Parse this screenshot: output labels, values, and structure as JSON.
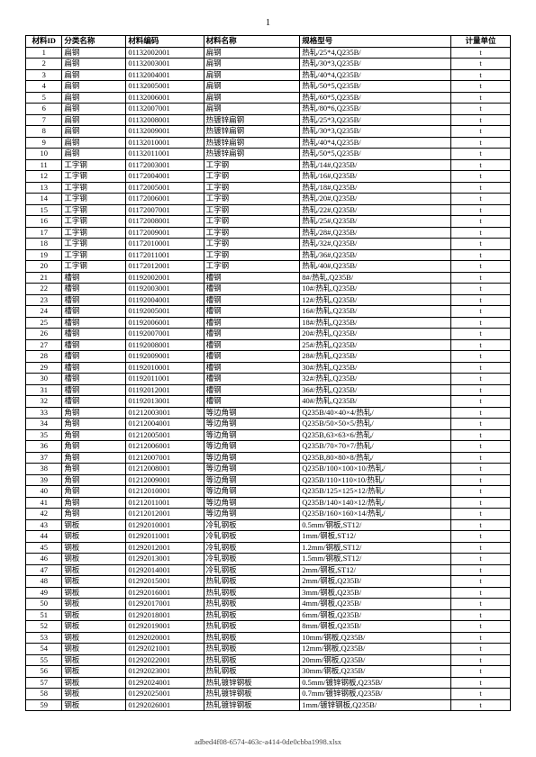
{
  "page_number": "1",
  "footer": "adbed4f08-6574-463c-a414-0de0cbba1998.xlsx",
  "headers": {
    "id": "材料ID",
    "cat": "分类名称",
    "code": "材料编码",
    "name": "材料名称",
    "spec": "规格型号",
    "unit": "计量单位"
  },
  "rows": [
    {
      "id": "1",
      "cat": "扁钢",
      "code": "01132002001",
      "name": "扁钢",
      "spec": "热轧/25*4,Q235B/",
      "unit": "t"
    },
    {
      "id": "2",
      "cat": "扁钢",
      "code": "01132003001",
      "name": "扁钢",
      "spec": "热轧/30*3,Q235B/",
      "unit": "t"
    },
    {
      "id": "3",
      "cat": "扁钢",
      "code": "01132004001",
      "name": "扁钢",
      "spec": "热轧/40*4,Q235B/",
      "unit": "t"
    },
    {
      "id": "4",
      "cat": "扁钢",
      "code": "01132005001",
      "name": "扁钢",
      "spec": "热轧/50*5,Q235B/",
      "unit": "t"
    },
    {
      "id": "5",
      "cat": "扁钢",
      "code": "01132006001",
      "name": "扁钢",
      "spec": "热轧/60*5,Q235B/",
      "unit": "t"
    },
    {
      "id": "6",
      "cat": "扁钢",
      "code": "01132007001",
      "name": "扁钢",
      "spec": "热轧/80*6,Q235B/",
      "unit": "t"
    },
    {
      "id": "7",
      "cat": "扁钢",
      "code": "01132008001",
      "name": "热镀锌扁钢",
      "spec": "热轧/25*3,Q235B/",
      "unit": "t"
    },
    {
      "id": "8",
      "cat": "扁钢",
      "code": "01132009001",
      "name": "热镀锌扁钢",
      "spec": "热轧/30*3,Q235B/",
      "unit": "t"
    },
    {
      "id": "9",
      "cat": "扁钢",
      "code": "01132010001",
      "name": "热镀锌扁钢",
      "spec": "热轧/40*4,Q235B/",
      "unit": "t"
    },
    {
      "id": "10",
      "cat": "扁钢",
      "code": "01132011001",
      "name": "热镀锌扁钢",
      "spec": "热轧/50*5,Q235B/",
      "unit": "t"
    },
    {
      "id": "11",
      "cat": "工字钢",
      "code": "01172003001",
      "name": "工字钢",
      "spec": "热轧/14#,Q235B/",
      "unit": "t"
    },
    {
      "id": "12",
      "cat": "工字钢",
      "code": "01172004001",
      "name": "工字钢",
      "spec": "热轧/16#,Q235B/",
      "unit": "t"
    },
    {
      "id": "13",
      "cat": "工字钢",
      "code": "01172005001",
      "name": "工字钢",
      "spec": "热轧/18#,Q235B/",
      "unit": "t"
    },
    {
      "id": "14",
      "cat": "工字钢",
      "code": "01172006001",
      "name": "工字钢",
      "spec": "热轧/20#,Q235B/",
      "unit": "t"
    },
    {
      "id": "15",
      "cat": "工字钢",
      "code": "01172007001",
      "name": "工字钢",
      "spec": "热轧/22#,Q235B/",
      "unit": "t"
    },
    {
      "id": "16",
      "cat": "工字钢",
      "code": "01172008001",
      "name": "工字钢",
      "spec": "热轧/25#,Q235B/",
      "unit": "t"
    },
    {
      "id": "17",
      "cat": "工字钢",
      "code": "01172009001",
      "name": "工字钢",
      "spec": "热轧/28#,Q235B/",
      "unit": "t"
    },
    {
      "id": "18",
      "cat": "工字钢",
      "code": "01172010001",
      "name": "工字钢",
      "spec": "热轧/32#,Q235B/",
      "unit": "t"
    },
    {
      "id": "19",
      "cat": "工字钢",
      "code": "01172011001",
      "name": "工字钢",
      "spec": "热轧/36#,Q235B/",
      "unit": "t"
    },
    {
      "id": "20",
      "cat": "工字钢",
      "code": "01172012001",
      "name": "工字钢",
      "spec": "热轧/40#,Q235B/",
      "unit": "t"
    },
    {
      "id": "21",
      "cat": "槽钢",
      "code": "01192002001",
      "name": "槽钢",
      "spec": "8#/热轧,Q235B/",
      "unit": "t"
    },
    {
      "id": "22",
      "cat": "槽钢",
      "code": "01192003001",
      "name": "槽钢",
      "spec": "10#/热轧,Q235B/",
      "unit": "t"
    },
    {
      "id": "23",
      "cat": "槽钢",
      "code": "01192004001",
      "name": "槽钢",
      "spec": "12#/热轧,Q235B/",
      "unit": "t"
    },
    {
      "id": "24",
      "cat": "槽钢",
      "code": "01192005001",
      "name": "槽钢",
      "spec": "16#/热轧,Q235B/",
      "unit": "t"
    },
    {
      "id": "25",
      "cat": "槽钢",
      "code": "01192006001",
      "name": "槽钢",
      "spec": "18#/热轧,Q235B/",
      "unit": "t"
    },
    {
      "id": "26",
      "cat": "槽钢",
      "code": "01192007001",
      "name": "槽钢",
      "spec": "20#/热轧,Q235B/",
      "unit": "t"
    },
    {
      "id": "27",
      "cat": "槽钢",
      "code": "01192008001",
      "name": "槽钢",
      "spec": "25#/热轧,Q235B/",
      "unit": "t"
    },
    {
      "id": "28",
      "cat": "槽钢",
      "code": "01192009001",
      "name": "槽钢",
      "spec": "28#/热轧,Q235B/",
      "unit": "t"
    },
    {
      "id": "29",
      "cat": "槽钢",
      "code": "01192010001",
      "name": "槽钢",
      "spec": "30#/热轧,Q235B/",
      "unit": "t"
    },
    {
      "id": "30",
      "cat": "槽钢",
      "code": "01192011001",
      "name": "槽钢",
      "spec": "32#/热轧,Q235B/",
      "unit": "t"
    },
    {
      "id": "31",
      "cat": "槽钢",
      "code": "01192012001",
      "name": "槽钢",
      "spec": "36#/热轧,Q235B/",
      "unit": "t"
    },
    {
      "id": "32",
      "cat": "槽钢",
      "code": "01192013001",
      "name": "槽钢",
      "spec": "40#/热轧,Q235B/",
      "unit": "t"
    },
    {
      "id": "33",
      "cat": "角钢",
      "code": "01212003001",
      "name": "等边角钢",
      "spec": "Q235B/40×40×4/热轧/",
      "unit": "t"
    },
    {
      "id": "34",
      "cat": "角钢",
      "code": "01212004001",
      "name": "等边角钢",
      "spec": "Q235B/50×50×5/热轧/",
      "unit": "t"
    },
    {
      "id": "35",
      "cat": "角钢",
      "code": "01212005001",
      "name": "等边角钢",
      "spec": "Q235B,63×63×6/热轧/",
      "unit": "t"
    },
    {
      "id": "36",
      "cat": "角钢",
      "code": "01212006001",
      "name": "等边角钢",
      "spec": "Q235B/70×70×7/热轧/",
      "unit": "t"
    },
    {
      "id": "37",
      "cat": "角钢",
      "code": "01212007001",
      "name": "等边角钢",
      "spec": "Q235B,80×80×8/热轧/",
      "unit": "t"
    },
    {
      "id": "38",
      "cat": "角钢",
      "code": "01212008001",
      "name": "等边角钢",
      "spec": "Q235B/100×100×10/热轧/",
      "unit": "t"
    },
    {
      "id": "39",
      "cat": "角钢",
      "code": "01212009001",
      "name": "等边角钢",
      "spec": "Q235B/110×110×10/热轧/",
      "unit": "t"
    },
    {
      "id": "40",
      "cat": "角钢",
      "code": "01212010001",
      "name": "等边角钢",
      "spec": "Q235B/125×125×12/热轧/",
      "unit": "t"
    },
    {
      "id": "41",
      "cat": "角钢",
      "code": "01212011001",
      "name": "等边角钢",
      "spec": "Q235B/140×140×12/热轧/",
      "unit": "t"
    },
    {
      "id": "42",
      "cat": "角钢",
      "code": "01212012001",
      "name": "等边角钢",
      "spec": "Q235B/160×160×14/热轧/",
      "unit": "t"
    },
    {
      "id": "43",
      "cat": "钢板",
      "code": "01292010001",
      "name": "冷轧钢板",
      "spec": "0.5mm/钢板,ST12/",
      "unit": "t"
    },
    {
      "id": "44",
      "cat": "钢板",
      "code": "01292011001",
      "name": "冷轧钢板",
      "spec": "1mm/钢板,ST12/",
      "unit": "t"
    },
    {
      "id": "45",
      "cat": "钢板",
      "code": "01292012001",
      "name": "冷轧钢板",
      "spec": "1.2mm/钢板,ST12/",
      "unit": "t"
    },
    {
      "id": "46",
      "cat": "钢板",
      "code": "01292013001",
      "name": "冷轧钢板",
      "spec": "1.5mm/钢板,ST12/",
      "unit": "t"
    },
    {
      "id": "47",
      "cat": "钢板",
      "code": "01292014001",
      "name": "冷轧钢板",
      "spec": "2mm/钢板,ST12/",
      "unit": "t"
    },
    {
      "id": "48",
      "cat": "钢板",
      "code": "01292015001",
      "name": "热轧钢板",
      "spec": "2mm/钢板,Q235B/",
      "unit": "t"
    },
    {
      "id": "49",
      "cat": "钢板",
      "code": "01292016001",
      "name": "热轧钢板",
      "spec": "3mm/钢板,Q235B/",
      "unit": "t"
    },
    {
      "id": "50",
      "cat": "钢板",
      "code": "01292017001",
      "name": "热轧钢板",
      "spec": "4mm/钢板,Q235B/",
      "unit": "t"
    },
    {
      "id": "51",
      "cat": "钢板",
      "code": "01292018001",
      "name": "热轧钢板",
      "spec": "6mm/钢板,Q235B/",
      "unit": "t"
    },
    {
      "id": "52",
      "cat": "钢板",
      "code": "01292019001",
      "name": "热轧钢板",
      "spec": "8mm/钢板,Q235B/",
      "unit": "t"
    },
    {
      "id": "53",
      "cat": "钢板",
      "code": "01292020001",
      "name": "热轧钢板",
      "spec": "10mm/钢板,Q235B/",
      "unit": "t"
    },
    {
      "id": "54",
      "cat": "钢板",
      "code": "01292021001",
      "name": "热轧钢板",
      "spec": "12mm/钢板,Q235B/",
      "unit": "t"
    },
    {
      "id": "55",
      "cat": "钢板",
      "code": "01292022001",
      "name": "热轧钢板",
      "spec": "20mm/钢板,Q235B/",
      "unit": "t"
    },
    {
      "id": "56",
      "cat": "钢板",
      "code": "01292023001",
      "name": "热轧钢板",
      "spec": "30mm/钢板,Q235B/",
      "unit": "t"
    },
    {
      "id": "57",
      "cat": "钢板",
      "code": "01292024001",
      "name": "热轧镀锌钢板",
      "spec": "0.5mm/镀锌钢板,Q235B/",
      "unit": "t"
    },
    {
      "id": "58",
      "cat": "钢板",
      "code": "01292025001",
      "name": "热轧镀锌钢板",
      "spec": "0.7mm/镀锌钢板,Q235B/",
      "unit": "t"
    },
    {
      "id": "59",
      "cat": "钢板",
      "code": "01292026001",
      "name": "热轧镀锌钢板",
      "spec": "1mm/镀锌钢板,Q235B/",
      "unit": "t"
    }
  ]
}
